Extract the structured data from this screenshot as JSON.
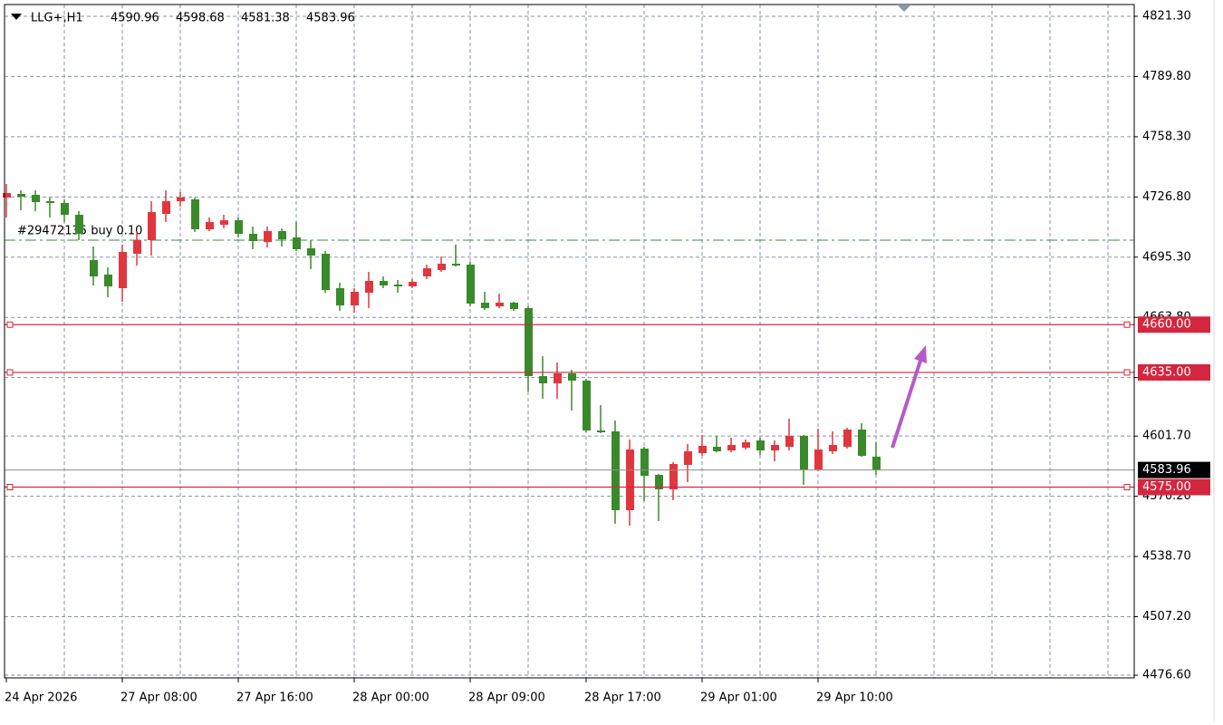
{
  "chart_data": {
    "type": "candlestick",
    "symbol": "LLG+,H1",
    "categories": [
      "24 Apr 2026",
      null,
      null,
      null,
      null,
      null,
      null,
      null,
      "27 Apr 08:00",
      null,
      null,
      null,
      null,
      null,
      null,
      null,
      "27 Apr 16:00",
      null,
      null,
      null,
      null,
      null,
      null,
      null,
      "28 Apr 00:00",
      null,
      null,
      null,
      null,
      null,
      null,
      null,
      "28 Apr 09:00",
      null,
      null,
      null,
      null,
      null,
      null,
      null,
      "28 Apr 17:00",
      null,
      null,
      null,
      null,
      null,
      null,
      null,
      "29 Apr 01:00",
      null,
      null,
      null,
      null,
      null,
      null,
      null,
      "29 Apr 10:00",
      null,
      null,
      null,
      null
    ],
    "open": [
      4726.48,
      4728.37,
      4727.9,
      4724.58,
      4723.63,
      4717.47,
      4693.76,
      4686.18,
      4679.07,
      4697.08,
      4704.19,
      4717.94,
      4724.58,
      4725.53,
      4709.88,
      4712.25,
      4714.62,
      4707.51,
      4703.25,
      4708.93,
      4705.62,
      4699.93,
      4697.08,
      4679.07,
      4670.06,
      4676.7,
      4682.86,
      4680.96,
      4680.01,
      4685.23,
      4688.55,
      4691.87,
      4691.39,
      4671.48,
      4669.58,
      4671.48,
      4668.64,
      4633.08,
      4629.29,
      4634.5,
      4630.71,
      4604.63,
      4604.16,
      4562.91,
      4595.15,
      4581.4,
      4573.82,
      4586.62,
      4592.78,
      4596.1,
      4594.2,
      4595.62,
      4599.42,
      4594.2,
      4596.1,
      4601.79,
      4584.25,
      4593.73,
      4596.1,
      4605.11,
      4590.96
    ],
    "high": [
      4733.59,
      4730.27,
      4730.27,
      4726.48,
      4725.53,
      4719.36,
      4700.87,
      4689.97,
      4701.82,
      4708.93,
      4724.58,
      4730.27,
      4729.32,
      4726.48,
      4716.05,
      4717.47,
      4716.05,
      4711.3,
      4711.3,
      4710.36,
      4713.68,
      4704.19,
      4698.5,
      4681.91,
      4679.07,
      4687.6,
      4685.23,
      4683.33,
      4683.81,
      4691.39,
      4695.66,
      4701.82,
      4692.81,
      4677.17,
      4676.22,
      4671.95,
      4669.58,
      4643.51,
      4640.19,
      4636.4,
      4631.66,
      4617.91,
      4609.85,
      4599.89,
      4596.1,
      4581.87,
      4588.04,
      4597.52,
      4602.26,
      4601.79,
      4600.84,
      4599.89,
      4600.84,
      4599.42,
      4610.8,
      4602.26,
      4605.58,
      4604.16,
      4606.05,
      4608.43,
      4598.68
    ],
    "low": [
      4716.05,
      4719.84,
      4719.36,
      4716.05,
      4713.68,
      4704.19,
      4680.49,
      4674.33,
      4671.95,
      4690.92,
      4696.13,
      4713.68,
      4721.74,
      4708.46,
      4708.93,
      4710.36,
      4705.62,
      4699.45,
      4700.4,
      4700.87,
      4698.5,
      4689.02,
      4676.7,
      4667.21,
      4666.27,
      4668.64,
      4679.07,
      4676.7,
      4679.07,
      4683.81,
      4687.6,
      4690.44,
      4669.58,
      4667.69,
      4668.64,
      4667.21,
      4625.02,
      4621.23,
      4621.23,
      4615.06,
      4603.68,
      4603.21,
      4555.8,
      4554.85,
      4567.66,
      4557.22,
      4568.13,
      4577.61,
      4591.36,
      4593.25,
      4593.25,
      4594.68,
      4591.83,
      4588.51,
      4594.2,
      4576.19,
      4583.3,
      4592.31,
      4595.15,
      4590.88,
      4581.38
    ],
    "close": [
      4728.85,
      4726.95,
      4724.11,
      4723.63,
      4717.47,
      4707.51,
      4685.23,
      4680.01,
      4698.03,
      4704.19,
      4718.89,
      4724.58,
      4726.48,
      4709.88,
      4713.68,
      4714.62,
      4707.51,
      4703.72,
      4708.93,
      4704.67,
      4699.45,
      4696.13,
      4678.12,
      4670.06,
      4677.17,
      4682.86,
      4680.49,
      4680.01,
      4682.38,
      4689.5,
      4691.87,
      4690.92,
      4671.01,
      4668.64,
      4671.48,
      4668.16,
      4633.08,
      4629.29,
      4634.5,
      4630.71,
      4604.63,
      4603.68,
      4562.91,
      4594.68,
      4580.93,
      4573.82,
      4587.09,
      4593.73,
      4596.57,
      4593.73,
      4597.05,
      4598.47,
      4594.2,
      4597.05,
      4601.79,
      4584.25,
      4594.68,
      4597.05,
      4605.11,
      4591.36,
      4583.96
    ],
    "bull_color": "#e0373f",
    "bear_color": "#3a8a2b",
    "ylim": [
      4476.15,
      4827.46
    ],
    "yticks": [
      {
        "value": 4821.3,
        "label": "4821.30"
      },
      {
        "value": 4789.8,
        "label": "4789.80"
      },
      {
        "value": 4758.3,
        "label": "4758.30"
      },
      {
        "value": 4726.8,
        "label": "4726.80"
      },
      {
        "value": 4695.3,
        "label": "4695.30"
      },
      {
        "value": 4663.8,
        "label": "4663.80"
      },
      {
        "value": 4632.3,
        "label": "4632.30"
      },
      {
        "value": 4601.7,
        "label": "4601.70"
      },
      {
        "value": 4570.2,
        "label": "4570.20"
      },
      {
        "value": 4538.7,
        "label": "4538.70"
      },
      {
        "value": 4507.2,
        "label": "4507.20"
      },
      {
        "value": 4476.6,
        "label": "4476.60"
      }
    ],
    "grid": true,
    "levels": [
      {
        "value": 4660,
        "label": "4660.00",
        "color": "#d4263f"
      },
      {
        "value": 4635,
        "label": "4635.00",
        "color": "#d4263f"
      },
      {
        "value": 4575,
        "label": "4575.00",
        "color": "#d4263f"
      }
    ],
    "order": {
      "text": "#29472135 buy 0.10",
      "price": 4704.19,
      "color": "#3c8a3c"
    }
  }
}
